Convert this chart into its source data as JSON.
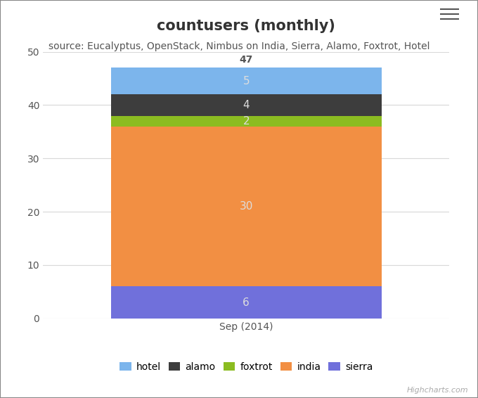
{
  "title": "countusers (monthly)",
  "subtitle": "source: Eucalyptus, OpenStack, Nimbus on India, Sierra, Alamo, Foxtrot, Hotel",
  "x_label": "Sep (2014)",
  "series": [
    {
      "name": "sierra",
      "values": [
        6
      ],
      "color": "#7070db"
    },
    {
      "name": "india",
      "values": [
        30
      ],
      "color": "#f28f43"
    },
    {
      "name": "foxtrot",
      "values": [
        2
      ],
      "color": "#8bbc21"
    },
    {
      "name": "alamo",
      "values": [
        4
      ],
      "color": "#3d3d3d"
    },
    {
      "name": "hotel",
      "values": [
        5
      ],
      "color": "#7cb5ec"
    }
  ],
  "total_label": 47,
  "ylim": [
    0,
    50
  ],
  "yticks": [
    0,
    10,
    20,
    30,
    40,
    50
  ],
  "background_color": "#ffffff",
  "plot_bg_color": "#ffffff",
  "grid_color": "#d8d8d8",
  "title_fontsize": 15,
  "subtitle_fontsize": 10,
  "label_color": "#dddddd",
  "total_color": "#555555",
  "bar_width": 0.6,
  "highcharts_credit": "Highcharts.com",
  "legend_items": [
    "hotel",
    "alamo",
    "foxtrot",
    "india",
    "sierra"
  ],
  "legend_colors": [
    "#7cb5ec",
    "#3d3d3d",
    "#8bbc21",
    "#f28f43",
    "#7070db"
  ],
  "outer_border_color": "#888888"
}
